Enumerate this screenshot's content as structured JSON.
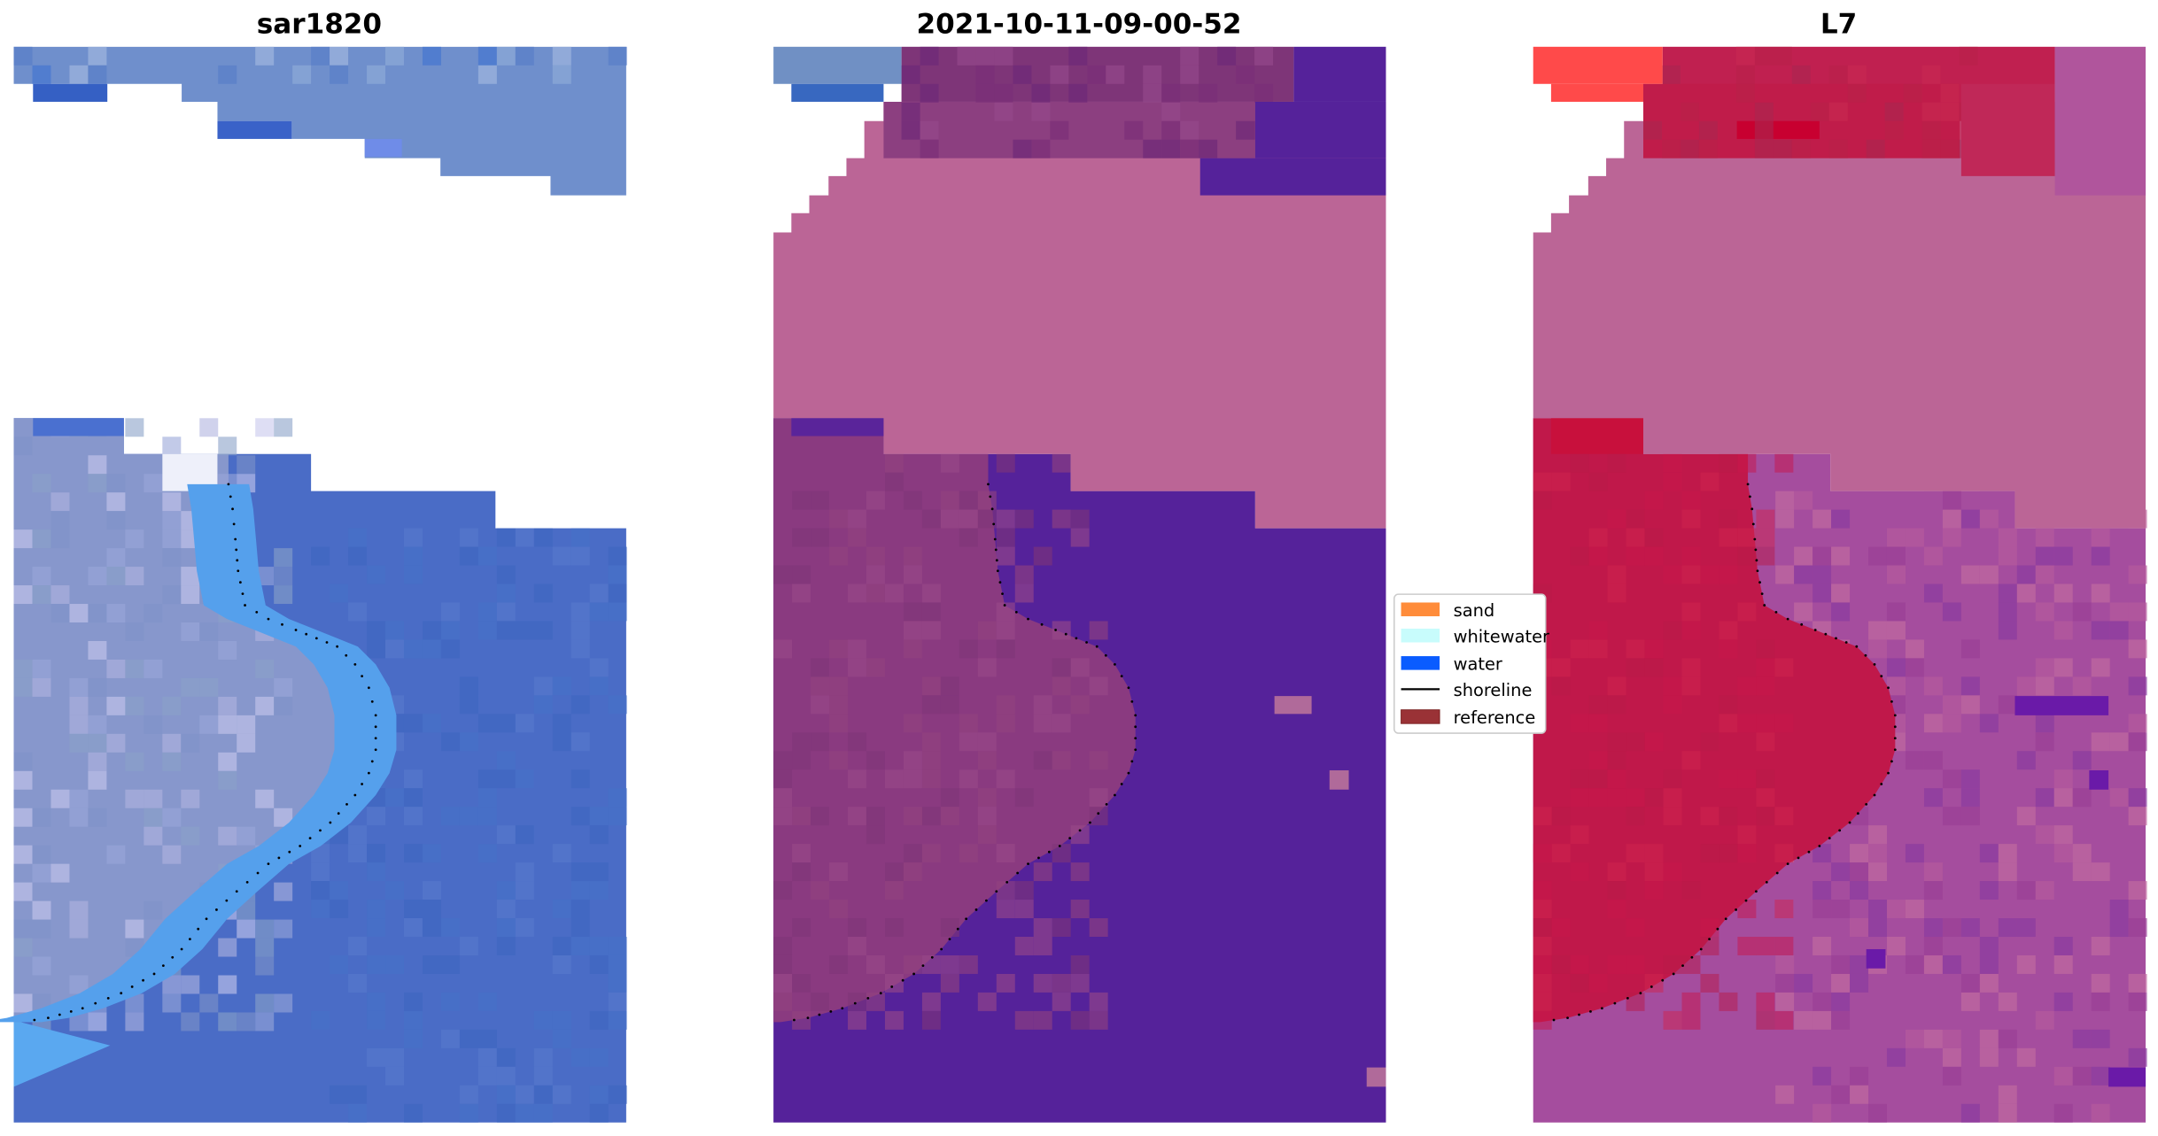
{
  "chart_data": {
    "type": "image",
    "panels": [
      {
        "title": "sar1820",
        "kind": "rgb-image"
      },
      {
        "title": "2021-10-11-09-00-52",
        "kind": "classified-image"
      },
      {
        "title": "L7",
        "kind": "classified-image"
      }
    ],
    "axes_visible": false,
    "legend": {
      "placement": "center-right of middle panel",
      "entries": [
        {
          "label": "sand",
          "type": "patch",
          "color": "#ff8c3a"
        },
        {
          "label": "whitewater",
          "type": "patch",
          "color": "#c8fcfc"
        },
        {
          "label": "water",
          "type": "patch",
          "color": "#0a5cff"
        },
        {
          "label": "shoreline",
          "type": "line",
          "color": "#000000"
        },
        {
          "label": "reference",
          "type": "patch",
          "color": "#9a3236"
        }
      ]
    }
  },
  "colors": {
    "sar_water": "#4a6cc6",
    "sar_land": "#8797cc",
    "sar_surf": "#55a0ec",
    "class_pink": "#bb6596",
    "class_land": "#8a3a80",
    "class_water": "#55229a",
    "l7_red": "#c0184a",
    "l7_magenta": "#a54d9e"
  }
}
